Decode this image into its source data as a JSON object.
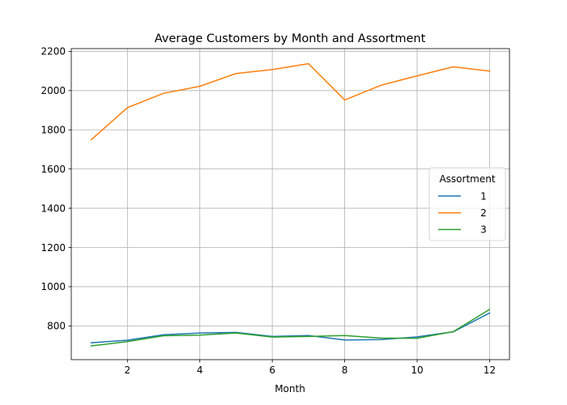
{
  "chart_data": {
    "type": "line",
    "title": "Average Customers by Month and Assortment",
    "xlabel": "Month",
    "ylabel": "",
    "xlim": [
      0.45,
      12.55
    ],
    "ylim": [
      628,
      2214
    ],
    "xticks": [
      2,
      4,
      6,
      8,
      10,
      12
    ],
    "yticks": [
      800,
      1000,
      1200,
      1400,
      1600,
      1800,
      2000,
      2200
    ],
    "grid": true,
    "legend": {
      "title": "Assortment",
      "placement": "center-right"
    },
    "x": [
      1,
      2,
      3,
      4,
      5,
      6,
      7,
      8,
      9,
      10,
      11,
      12
    ],
    "series": [
      {
        "name": "1",
        "color": "#1f77b4",
        "values": [
          714,
          727,
          755,
          764,
          767,
          746,
          751,
          728,
          730,
          744,
          770,
          866
        ]
      },
      {
        "name": "2",
        "color": "#ff7f0e",
        "values": [
          1749,
          1913,
          1986,
          2022,
          2087,
          2107,
          2137,
          1952,
          2027,
          2075,
          2121,
          2099
        ]
      },
      {
        "name": "3",
        "color": "#2ca02c",
        "values": [
          698,
          720,
          750,
          753,
          764,
          743,
          746,
          751,
          738,
          737,
          771,
          884
        ]
      }
    ]
  }
}
